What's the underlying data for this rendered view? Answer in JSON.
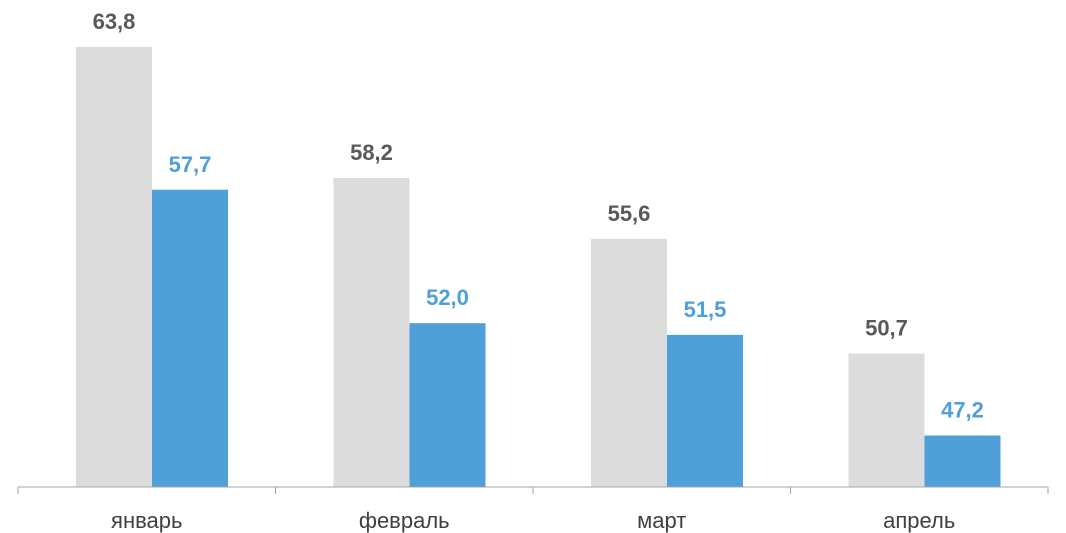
{
  "chart_data": {
    "type": "bar",
    "categories": [
      "январь",
      "февраль",
      "март",
      "апрель"
    ],
    "series": [
      {
        "values": [
          63.8,
          58.2,
          55.6,
          50.7
        ],
        "labels": [
          "63,8",
          "58,2",
          "55,6",
          "50,7"
        ],
        "color": "#dcdcdc",
        "label_color": "#595959"
      },
      {
        "values": [
          57.7,
          52.0,
          51.5,
          47.2
        ],
        "labels": [
          "57,7",
          "52,0",
          "51,5",
          "47,2"
        ],
        "color": "#4f9fd9",
        "label_color": "#4f9fd9"
      }
    ],
    "ylim": [
      45,
      65
    ],
    "grid": false,
    "legend": "none"
  }
}
